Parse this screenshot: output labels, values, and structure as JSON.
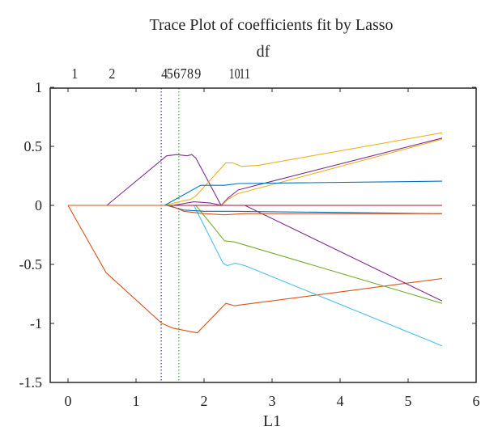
{
  "chart_data": {
    "type": "line",
    "title": "Trace Plot of coefficients fit by Lasso",
    "xlabel": "L1",
    "ylabel": "",
    "top_axis_label": "df",
    "xlim": [
      -0.27,
      6
    ],
    "ylim": [
      -1.5,
      1
    ],
    "grid": false,
    "legend": "none",
    "x_ticks": [
      "0",
      "1",
      "2",
      "3",
      "4",
      "5",
      "6"
    ],
    "y_ticks": [
      "1",
      "0.5",
      "0",
      "-0.5",
      "-1",
      "-1.5"
    ],
    "top_ticks": [
      {
        "label": "1",
        "x": 0.05
      },
      {
        "label": "2",
        "x": 0.6
      },
      {
        "label": "4",
        "x": 1.37
      },
      {
        "label": "5",
        "x": 1.45
      },
      {
        "label": "6",
        "x": 1.55
      },
      {
        "label": "7",
        "x": 1.65
      },
      {
        "label": "8",
        "x": 1.75
      },
      {
        "label": "9",
        "x": 1.86
      },
      {
        "label": "10",
        "x": 2.4
      },
      {
        "label": "11",
        "x": 2.55
      }
    ],
    "vertical_markers": [
      {
        "x": 1.37,
        "color": "#0000ff",
        "style": "dotted"
      },
      {
        "x": 1.63,
        "color": "#00aa00",
        "style": "dotted"
      }
    ],
    "series": [
      {
        "name": "coef-orange-neg",
        "color": "#D95319",
        "x": [
          0,
          0.56,
          1.38,
          1.54,
          1.9,
          2.32,
          2.45,
          5.5
        ],
        "y": [
          0,
          -0.57,
          -1.0,
          -1.04,
          -1.08,
          -0.83,
          -0.85,
          -0.62
        ]
      },
      {
        "name": "coef-purple-plateau",
        "color": "#7E2F8E",
        "x": [
          0,
          0.57,
          1.45,
          1.6,
          1.75,
          1.82,
          1.88,
          2.25,
          2.35,
          2.5,
          2.9,
          5.5
        ],
        "y": [
          0,
          0,
          0.42,
          0.43,
          0.42,
          0.43,
          0.4,
          0.0,
          0.06,
          0.13,
          0.19,
          0.57
        ]
      },
      {
        "name": "coef-yellow-top",
        "color": "#EDB120",
        "x": [
          0,
          1.42,
          1.7,
          1.8,
          1.88,
          2.32,
          2.42,
          2.55,
          2.8,
          5.5
        ],
        "y": [
          0,
          0,
          0.04,
          0.05,
          0.08,
          0.36,
          0.36,
          0.33,
          0.34,
          0.615
        ]
      },
      {
        "name": "coef-yellow-second",
        "color": "#EDB120",
        "x": [
          0,
          2.26,
          2.35,
          2.5,
          2.9,
          5.5
        ],
        "y": [
          0,
          0,
          0.05,
          0.1,
          0.16,
          0.56
        ]
      },
      {
        "name": "coef-blue",
        "color": "#0072BD",
        "x": [
          0,
          1.42,
          1.95,
          2.3,
          2.5,
          5.5
        ],
        "y": [
          0,
          0,
          0.17,
          0.17,
          0.185,
          0.205
        ]
      },
      {
        "name": "coef-cyan",
        "color": "#4DBEEE",
        "x": [
          0,
          1.85,
          2.28,
          2.34,
          2.46,
          2.6,
          5.5
        ],
        "y": [
          0,
          0,
          -0.49,
          -0.51,
          -0.49,
          -0.51,
          -1.19
        ]
      },
      {
        "name": "coef-green",
        "color": "#77AC30",
        "x": [
          0,
          1.88,
          2.3,
          2.45,
          5.5
        ],
        "y": [
          0,
          0,
          -0.3,
          -0.31,
          -0.83
        ]
      },
      {
        "name": "coef-purple-descending",
        "color": "#7E2F8E",
        "x": [
          0,
          1.55,
          1.85,
          2.1,
          2.25,
          2.6,
          5.5
        ],
        "y": [
          0,
          0,
          0.03,
          0.02,
          0.0,
          0.0,
          -0.81
        ]
      },
      {
        "name": "coef-red-zero",
        "color": "#A2142F",
        "x": [
          0,
          5.5
        ],
        "y": [
          0,
          0
        ]
      },
      {
        "name": "coef-blue-small",
        "color": "#0072BD",
        "x": [
          0,
          1.45,
          1.7,
          2.0,
          2.4,
          5.5
        ],
        "y": [
          0,
          0,
          -0.04,
          -0.05,
          -0.05,
          -0.07
        ]
      },
      {
        "name": "coef-orange-small",
        "color": "#D95319",
        "x": [
          0,
          1.5,
          1.7,
          2.0,
          2.3,
          2.6,
          5.5
        ],
        "y": [
          0,
          0,
          -0.05,
          -0.07,
          -0.08,
          -0.07,
          -0.07
        ]
      }
    ]
  }
}
